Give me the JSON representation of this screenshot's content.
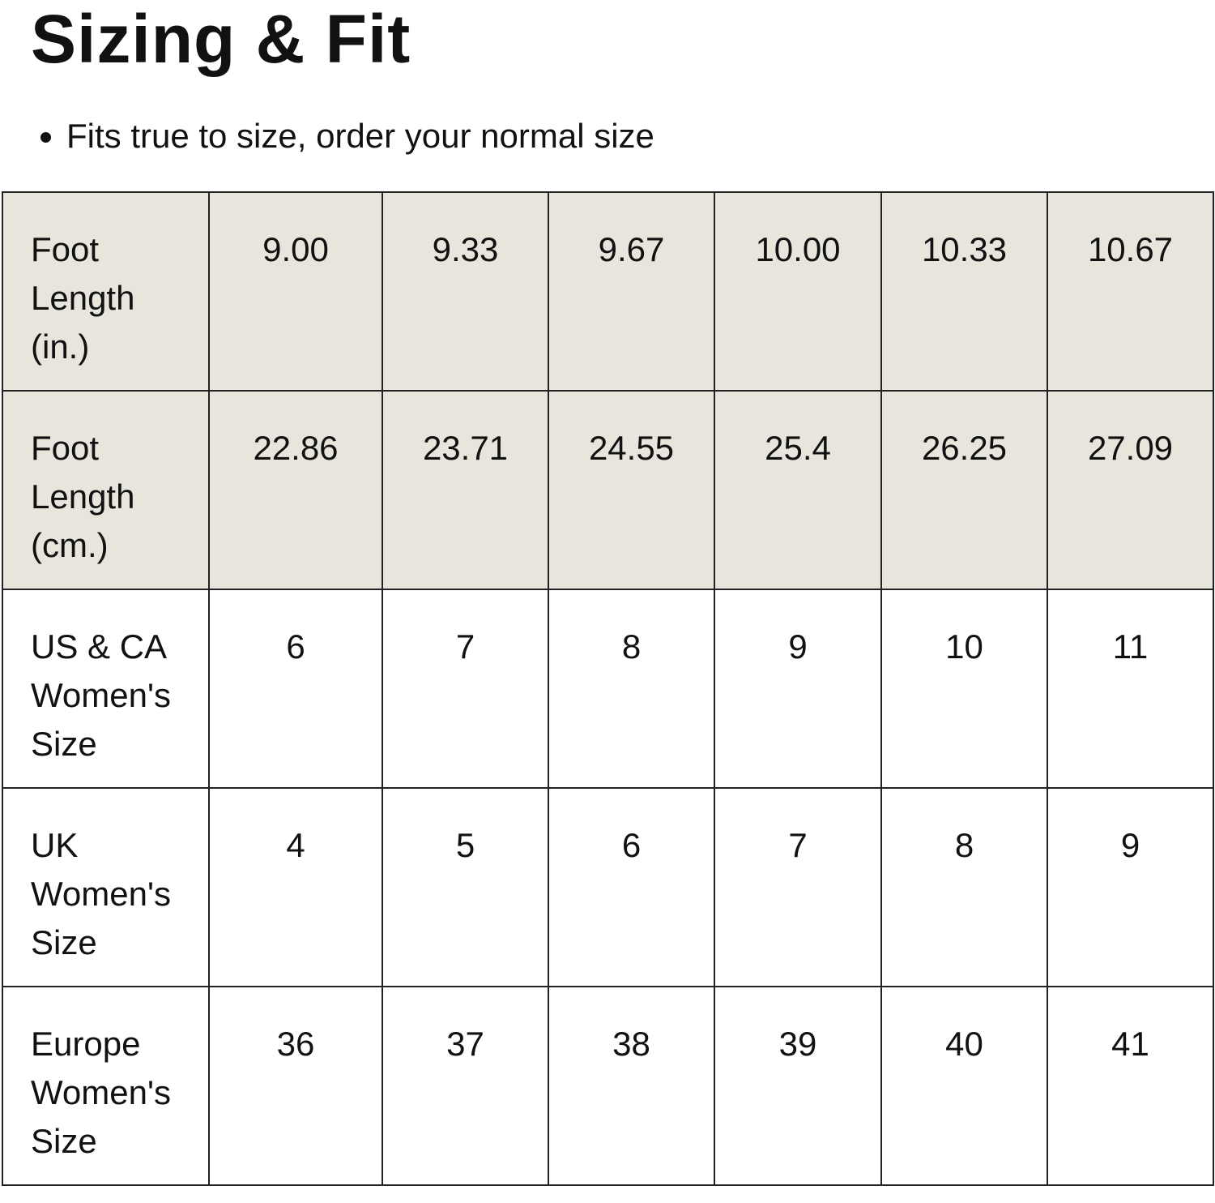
{
  "header": {
    "title": "Sizing & Fit",
    "note": "Fits true to size, order your normal size"
  },
  "table": {
    "rows": [
      [
        "Foot Length (in.)",
        "9.00",
        "9.33",
        "9.67",
        "10.00",
        "10.33",
        "10.67"
      ],
      [
        "Foot Length (cm.)",
        "22.86",
        "23.71",
        "24.55",
        "25.4",
        "26.25",
        "27.09"
      ],
      [
        "US & CA Women's Size",
        "6",
        "7",
        "8",
        "9",
        "10",
        "11"
      ],
      [
        "UK Women's Size",
        "4",
        "5",
        "6",
        "7",
        "8",
        "9"
      ],
      [
        "Europe Women's Size",
        "36",
        "37",
        "38",
        "39",
        "40",
        "41"
      ]
    ],
    "shaded_rows": [
      0,
      1
    ]
  }
}
